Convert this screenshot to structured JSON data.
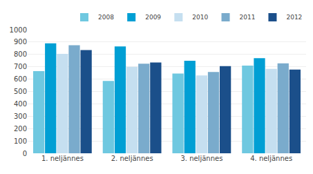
{
  "chart_data": {
    "type": "bar",
    "categories": [
      "1. neljännes",
      "2. neljännes",
      "3. neljännes",
      "4. neljännes"
    ],
    "series": [
      {
        "name": "2008",
        "color": "#6fc8e0",
        "values": [
          665,
          585,
          645,
          710
        ]
      },
      {
        "name": "2009",
        "color": "#009fd4",
        "values": [
          890,
          865,
          748,
          770
        ]
      },
      {
        "name": "2010",
        "color": "#c5dff0",
        "values": [
          805,
          700,
          630,
          683
        ]
      },
      {
        "name": "2011",
        "color": "#7aabcc",
        "values": [
          875,
          725,
          658,
          727
        ]
      },
      {
        "name": "2012",
        "color": "#1b4f8a",
        "values": [
          835,
          735,
          705,
          678
        ]
      }
    ],
    "ylim": [
      0,
      1000
    ],
    "yticks": [
      0,
      100,
      200,
      300,
      400,
      500,
      600,
      700,
      800,
      900,
      1000
    ],
    "grid": true,
    "legend": "upper right"
  }
}
